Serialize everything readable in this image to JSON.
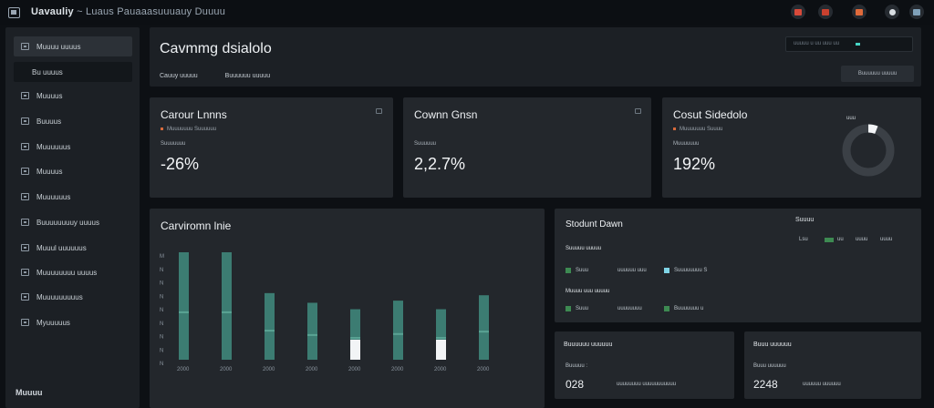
{
  "app": {
    "title": "Uavauliy",
    "subtitle": "~ Luaus Pauaaasuuuauy Duuuu"
  },
  "topbar": {
    "icons": [
      {
        "name": "flag-icon",
        "color": "#d84a3a"
      },
      {
        "name": "alert-icon",
        "color": "#c9412f"
      },
      {
        "name": "calendar-icon",
        "color": "#e06a3b"
      },
      {
        "name": "clock-icon",
        "color": "#d8dde2"
      },
      {
        "name": "user-icon",
        "color": "#7fa0b8"
      }
    ]
  },
  "sidebar": {
    "items": [
      {
        "label": "Muuuu uuuus",
        "icon": "home-icon"
      },
      {
        "label": "Bu uuuus",
        "icon": "subpage-icon"
      },
      {
        "label": "Muuuus",
        "icon": "grid-icon"
      },
      {
        "label": "Buuuus",
        "icon": "grid-icon"
      },
      {
        "label": "Muuuuuus",
        "icon": "grid-icon"
      },
      {
        "label": "Muuuus",
        "icon": "grid-icon"
      },
      {
        "label": "Muuuuuus",
        "icon": "grid-icon"
      },
      {
        "label": "Buuuuuuuuy uuuus",
        "icon": "grid-icon"
      },
      {
        "label": "Muuul uuuuuus",
        "icon": "grid-icon"
      },
      {
        "label": "Muuuuuuuu uuuus",
        "icon": "grid-icon"
      },
      {
        "label": "Muuuuuuuuus",
        "icon": "grid-icon"
      },
      {
        "label": "Myuuuuus",
        "icon": "grid-icon"
      }
    ],
    "footer": "Muuuu"
  },
  "header": {
    "title": "Cavmmg dsialolo",
    "tabs": [
      "Cauuy uuuuu",
      "Buuuuuu uuuuu"
    ],
    "search_placeholder": "uuuuu u   uu   uuu uu",
    "button": "Buuuuuu uuuuu"
  },
  "stats": [
    {
      "title": "Carour Lnnns",
      "sub": "Muuuuuuu Suuuuuu",
      "label": "Suuuuuuu",
      "value": "-26%"
    },
    {
      "title": "Cownn Gnsn",
      "sub": "",
      "label": "Suuuuuu",
      "value": "2,2.7%"
    },
    {
      "title": "Cosut Sidedolo",
      "sub": "Muuuuuuu Suuuu",
      "label": "Muuuuuuu",
      "value": "192%",
      "donut_label": "uuu",
      "donut_fraction": 0.06
    }
  ],
  "chart_panel": {
    "title": "Carviromn lnie"
  },
  "chart_data": {
    "type": "bar",
    "title": "Carviromn lnie",
    "ylabels": [
      "M",
      "N",
      "N",
      "N",
      "N",
      "N",
      "N",
      "N",
      "N"
    ],
    "categories": [
      "2000",
      "2000",
      "2000",
      "2000",
      "2000",
      "2000",
      "2000",
      "2000"
    ],
    "values": [
      100,
      100,
      62,
      53,
      47,
      55,
      47,
      60
    ],
    "ylim": [
      0,
      100
    ],
    "highlighted": [
      false,
      false,
      false,
      false,
      true,
      false,
      true,
      false
    ],
    "bar_color": "#3c7c72",
    "highlight_color": "#f2f4f6"
  },
  "status_panel": {
    "title": "Stodunt Dawn",
    "corner_label": "Suuuu",
    "legend": [
      "Lsu",
      "uu",
      "uuuu"
    ],
    "group1_label": "Suuuuu uuuuu",
    "group1_items": [
      {
        "label": "Suuu",
        "value": "uuuuuu uuu",
        "color": "#3d8a52"
      },
      {
        "label": "Suuuuuuuu S",
        "value": "",
        "color": "#7fd4e6"
      }
    ],
    "group2_label": "Muuuu uuu uuuuu",
    "group2_items": [
      {
        "label": "Suuu",
        "value": "uuuuuuuu",
        "color": "#3d8a52"
      },
      {
        "label": "Buuuuuuu u",
        "value": "",
        "color": "#3d8a52"
      }
    ]
  },
  "bottom_panels": [
    {
      "title": "Buuuuuu uuuuuu",
      "label": "Buuuuu :",
      "value": "028",
      "detail": "uuuuuuuu  uuuuuuuuuuu"
    },
    {
      "title": "Buuu uuuuuu",
      "label": "Buuu uuuuuu",
      "value": "2248",
      "detail": "uuuuuu uuuuuu"
    }
  ]
}
